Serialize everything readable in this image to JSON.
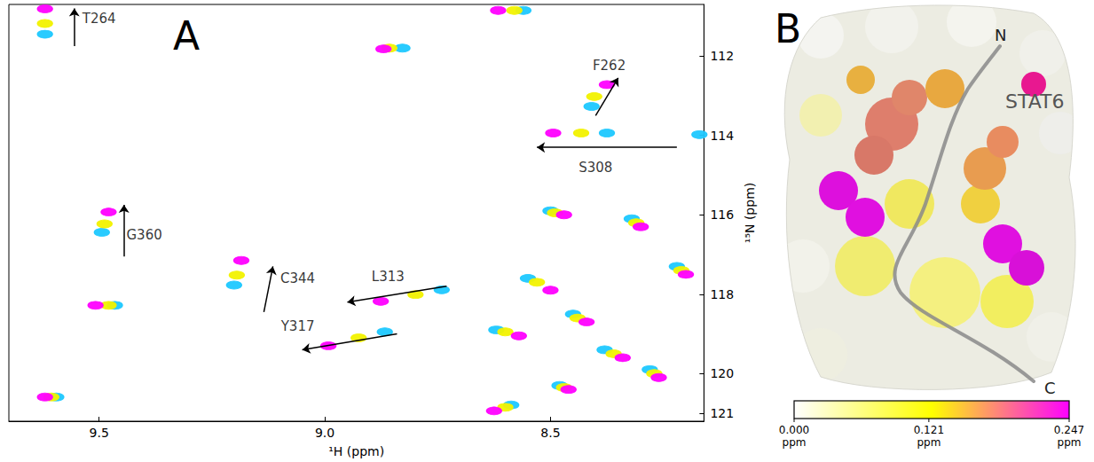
{
  "chart_data": {
    "type": "scatter",
    "panel_label": "A",
    "x_label": "¹H (ppm)",
    "y_label": "¹⁵N (ppm)",
    "xlim": [
      9.7,
      8.16
    ],
    "ylim": [
      110.7,
      121.2
    ],
    "xticks": [
      9.5,
      {
        "value": 9,
        "label": "9.0"
      },
      8.5
    ],
    "yticks": [
      112,
      114,
      116,
      118,
      120,
      121
    ],
    "grid": false,
    "marker": "ellipse",
    "series": [
      {
        "color": "#1ec8ff",
        "x": [
          9.62,
          8.56,
          8.828,
          8.409,
          8.375,
          8.17,
          9.494,
          9.201,
          9.465,
          8.741,
          8.867,
          9.595,
          8.587,
          8.5,
          8.32,
          8.55,
          8.45,
          8.62,
          8.38,
          8.28,
          8.48,
          8.22
        ],
        "y": [
          111.45,
          110.85,
          111.8,
          113.27,
          113.94,
          113.98,
          116.44,
          117.77,
          118.28,
          117.89,
          118.95,
          120.59,
          120.79,
          115.9,
          116.1,
          117.6,
          118.5,
          118.9,
          119.4,
          119.9,
          120.3,
          117.3
        ]
      },
      {
        "color": "#f2f200",
        "x": [
          9.62,
          8.58,
          8.857,
          8.403,
          8.432,
          9.488,
          9.195,
          9.479,
          8.799,
          8.925,
          9.606,
          8.6,
          8.49,
          8.31,
          8.53,
          8.44,
          8.6,
          8.36,
          8.27,
          8.47,
          8.21
        ],
        "y": [
          111.18,
          110.85,
          111.8,
          113.02,
          113.94,
          116.23,
          117.52,
          118.28,
          118.01,
          119.1,
          120.59,
          120.85,
          115.95,
          116.2,
          117.7,
          118.6,
          118.95,
          119.5,
          120.0,
          120.35,
          117.4
        ]
      },
      {
        "color": "#ff00ff",
        "x": [
          9.62,
          8.616,
          8.87,
          8.375,
          8.494,
          9.479,
          9.185,
          9.508,
          8.876,
          8.992,
          9.62,
          8.625,
          8.47,
          8.3,
          8.5,
          8.42,
          8.57,
          8.34,
          8.26,
          8.46,
          8.2
        ],
        "y": [
          110.81,
          110.85,
          111.82,
          112.72,
          113.94,
          115.93,
          117.15,
          118.28,
          118.18,
          119.3,
          120.59,
          120.94,
          116.0,
          116.3,
          117.9,
          118.7,
          119.05,
          119.6,
          120.1,
          120.4,
          117.5
        ]
      }
    ],
    "annotations": [
      {
        "text": "T264",
        "x": 9.5,
        "y": 111.05,
        "arrow": [
          [
            9.555,
            111.75
          ],
          [
            9.555,
            110.8
          ]
        ]
      },
      {
        "text": "F262",
        "x": 8.37,
        "y": 112.25,
        "arrow": [
          [
            8.4,
            113.5
          ],
          [
            8.35,
            112.55
          ]
        ]
      },
      {
        "text": "S308",
        "x": 8.4,
        "y": 114.8,
        "arrow": [
          [
            8.22,
            114.3
          ],
          [
            8.53,
            114.3
          ]
        ]
      },
      {
        "text": "G360",
        "x": 9.4,
        "y": 116.5,
        "arrow": [
          [
            9.445,
            117.05
          ],
          [
            9.445,
            115.75
          ]
        ]
      },
      {
        "text": "C344",
        "x": 9.06,
        "y": 117.6,
        "arrow": [
          [
            9.135,
            118.45
          ],
          [
            9.115,
            117.3
          ]
        ]
      },
      {
        "text": "L313",
        "x": 8.86,
        "y": 117.55,
        "arrow": [
          [
            8.73,
            117.8
          ],
          [
            8.95,
            118.2
          ]
        ]
      },
      {
        "text": "Y317",
        "x": 9.06,
        "y": 118.8,
        "arrow": [
          [
            8.84,
            119.0
          ],
          [
            9.05,
            119.4
          ]
        ]
      }
    ]
  },
  "panel_b": {
    "panel_label": "B",
    "texts": {
      "n_terminus": "N",
      "c_terminus": "C",
      "protein": "STAT6"
    },
    "colorbar": {
      "range": [
        0,
        0.247
      ],
      "ticks": [
        {
          "value": 0,
          "label": "0.000"
        },
        {
          "value": 0.121,
          "label": "0.121"
        },
        {
          "value": 0.247,
          "label": "0.247"
        }
      ],
      "unit": "ppm",
      "colors": [
        "#ffffff",
        "#ffff00",
        "#ff00ff"
      ]
    }
  }
}
